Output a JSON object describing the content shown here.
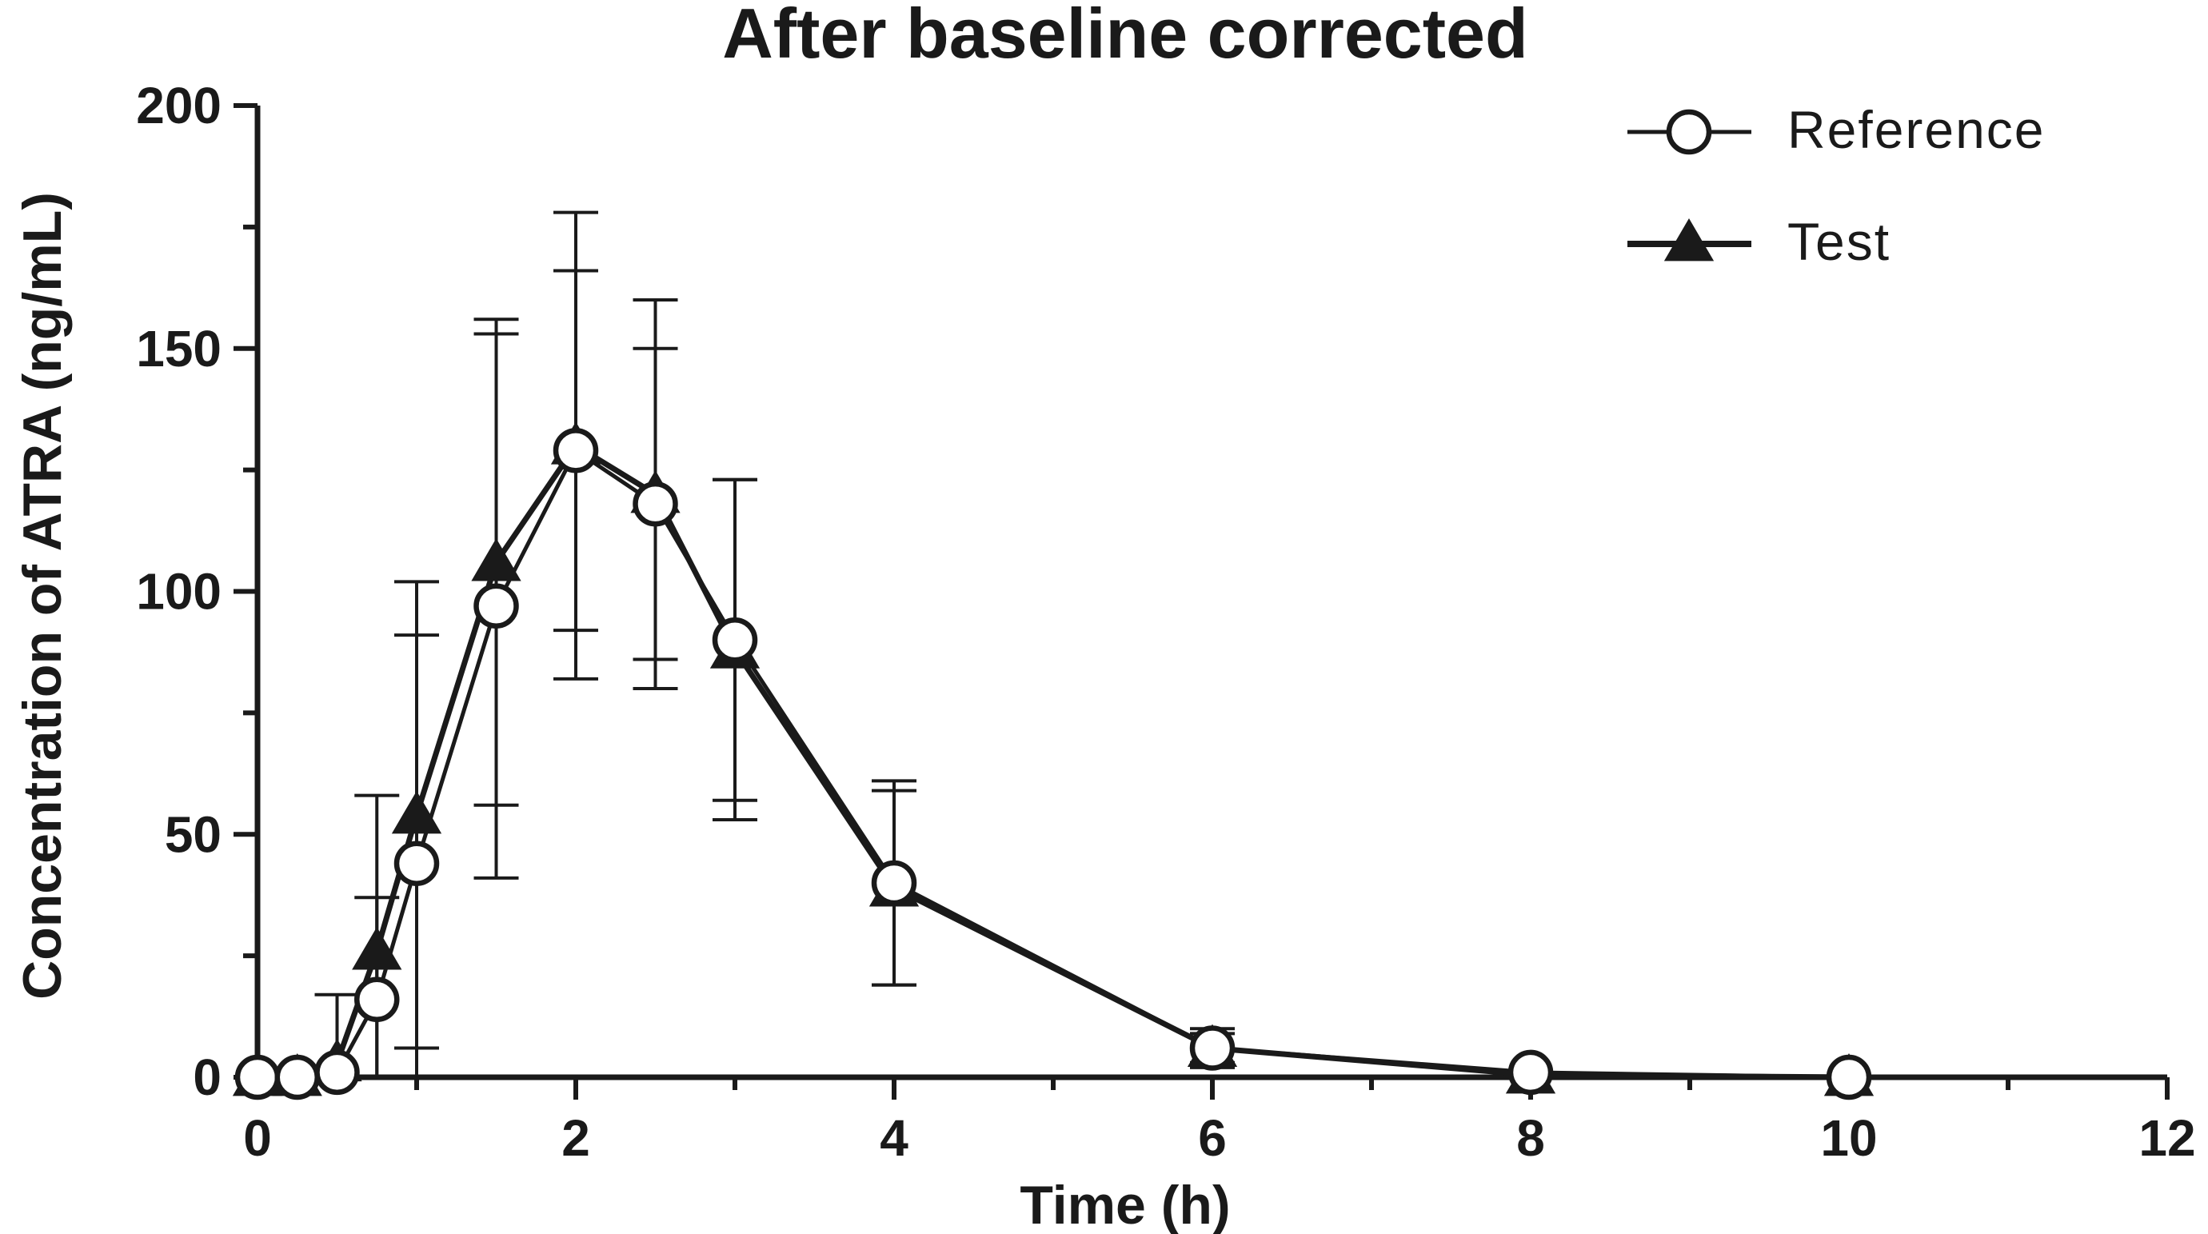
{
  "chart_data": {
    "type": "line",
    "title": "After baseline corrected",
    "xlabel": "Time (h)",
    "ylabel": "Concentration of ATRA (ng/mL)",
    "xlim": [
      0,
      12
    ],
    "ylim": [
      0,
      200
    ],
    "xticks": [
      0,
      2,
      4,
      6,
      8,
      10,
      12
    ],
    "yticks": [
      0,
      50,
      100,
      150,
      200
    ],
    "x_minor_step": 1,
    "y_minor_step": 25,
    "grid": false,
    "legend_position": "top-right",
    "series": [
      {
        "name": "Reference",
        "marker": "open-circle",
        "color": "#1a1a1a",
        "x": [
          0,
          0.25,
          0.5,
          0.75,
          1,
          1.5,
          2,
          2.5,
          3,
          4,
          6,
          8,
          10
        ],
        "y": [
          0,
          0,
          1,
          16,
          44,
          97,
          129,
          118,
          90,
          40,
          6,
          1,
          0
        ],
        "err": [
          0,
          0,
          0,
          21,
          47,
          56,
          37,
          32,
          33,
          21,
          3,
          0,
          0
        ]
      },
      {
        "name": "Test",
        "marker": "filled-triangle",
        "color": "#1a1a1a",
        "x": [
          0,
          0.25,
          0.5,
          0.75,
          1,
          1.5,
          2,
          2.5,
          3,
          4,
          6,
          8,
          10
        ],
        "y": [
          0,
          0,
          3,
          26,
          54,
          106,
          130,
          120,
          88,
          39,
          6,
          0.5,
          0
        ],
        "err": [
          0,
          0,
          14,
          32,
          48,
          50,
          48,
          40,
          35,
          20,
          4,
          0,
          0
        ]
      }
    ]
  }
}
